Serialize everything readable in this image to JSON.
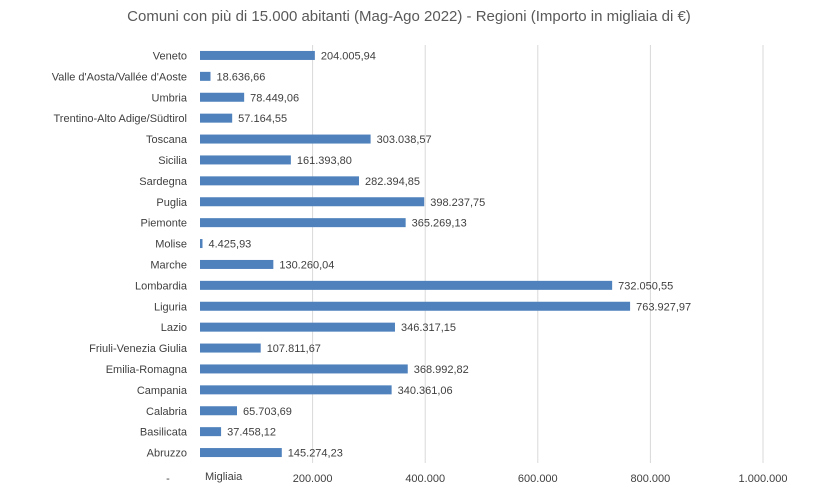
{
  "chart_data": {
    "type": "bar",
    "orientation": "horizontal",
    "title": "Comuni con più di 15.000 abitanti (Mag-Ago 2022) - Regioni (Importo in migliaia di €)",
    "xlabel": "Migliaia",
    "xlim": [
      0,
      1000000
    ],
    "xticks": [
      0,
      200000,
      400000,
      600000,
      800000,
      1000000
    ],
    "xtick_labels": [
      "-",
      "200.000",
      "400.000",
      "600.000",
      "800.000",
      "1.000.000"
    ],
    "grid": true,
    "categories": [
      "Veneto",
      "Valle d'Aosta/Vallée d'Aoste",
      "Umbria",
      "Trentino-Alto Adige/Südtirol",
      "Toscana",
      "Sicilia",
      "Sardegna",
      "Puglia",
      "Piemonte",
      "Molise",
      "Marche",
      "Lombardia",
      "Liguria",
      "Lazio",
      "Friuli-Venezia Giulia",
      "Emilia-Romagna",
      "Campania",
      "Calabria",
      "Basilicata",
      "Abruzzo"
    ],
    "values": [
      204005.94,
      18636.66,
      78449.06,
      57164.55,
      303038.57,
      161393.8,
      282394.85,
      398237.75,
      365269.13,
      4425.93,
      130260.04,
      732050.55,
      763927.97,
      346317.15,
      107811.67,
      368992.82,
      340361.06,
      65703.69,
      37458.12,
      145274.23
    ],
    "value_labels": [
      "204.005,94",
      "18.636,66",
      "78.449,06",
      "57.164,55",
      "303.038,57",
      "161.393,80",
      "282.394,85",
      "398.237,75",
      "365.269,13",
      "4.425,93",
      "130.260,04",
      "732.050,55",
      "763.927,97",
      "346.317,15",
      "107.811,67",
      "368.992,82",
      "340.361,06",
      "65.703,69",
      "37.458,12",
      "145.274,23"
    ],
    "colors": {
      "bar": "#4f81bd",
      "grid": "#d9d9d9"
    }
  }
}
